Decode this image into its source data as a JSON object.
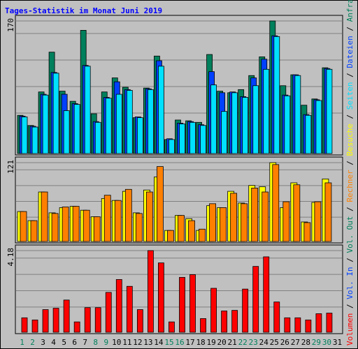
{
  "chart_data": {
    "type": "bar",
    "title": "Tages-Statistik im Monat Juni 2019",
    "title_color": "#0000ff",
    "categories": [
      "1",
      "2",
      "3",
      "4",
      "5",
      "6",
      "7",
      "8",
      "9",
      "10",
      "11",
      "12",
      "13",
      "14",
      "15",
      "16",
      "17",
      "18",
      "19",
      "20",
      "21",
      "22",
      "23",
      "24",
      "25",
      "26",
      "27",
      "28",
      "29",
      "30",
      "31"
    ],
    "category_colors": [
      "#00805c",
      "#00805c",
      "#000000",
      "#000000",
      "#000000",
      "#000000",
      "#000000",
      "#00805c",
      "#00805c",
      "#000000",
      "#000000",
      "#000000",
      "#000000",
      "#000000",
      "#00805c",
      "#00805c",
      "#000000",
      "#000000",
      "#000000",
      "#000000",
      "#000000",
      "#00805c",
      "#00805c",
      "#000000",
      "#000000",
      "#000000",
      "#000000",
      "#000000",
      "#00805c",
      "#00805c",
      "#000000"
    ],
    "panels": [
      {
        "ylim": [
          0,
          170
        ],
        "yticks": [
          170
        ],
        "series": [
          {
            "name": "Anfragen",
            "color": "#00805c",
            "values": [
              49,
              36,
              79,
              130,
              80,
              67,
              158,
              51,
              79,
              97,
              85,
              46,
              84,
              125,
              18,
              43,
              42,
              40,
              127,
              80,
              78,
              82,
              100,
              124,
              170,
              87,
              101,
              62,
              70,
              110,
              null
            ]
          },
          {
            "name": "Dateien",
            "color": "#0040ff",
            "values": [
              48,
              35,
              76,
              104,
              76,
              64,
              113,
              41,
              72,
              92,
              82,
              47,
              83,
              119,
              19,
              39,
              41,
              37,
              105,
              78,
              79,
              73,
              97,
              121,
              151,
              75,
              101,
              50,
              69,
              109,
              null
            ]
          },
          {
            "name": "Seiten",
            "color": "#00e0ff",
            "values": [
              47,
              34,
              75,
              103,
              55,
              63,
              112,
              40,
              71,
              76,
              81,
              46,
              82,
              112,
              18,
              38,
              40,
              36,
              88,
              54,
              78,
              72,
              87,
              108,
              150,
              74,
              100,
              49,
              68,
              108,
              null
            ]
          }
        ]
      },
      {
        "ylim": [
          0,
          121
        ],
        "yticks": [
          121
        ],
        "series": [
          {
            "name": "Besuche",
            "color": "#ffff00",
            "values": [
              46,
              32,
              76,
              44,
              52,
              54,
              48,
              38,
              66,
              63,
              77,
              44,
              79,
              99,
              17,
              40,
              35,
              17,
              55,
              52,
              77,
              59,
              86,
              84,
              121,
              52,
              90,
              30,
              60,
              96,
              null
            ]
          },
          {
            "name": "Rechner",
            "color": "#ff8000",
            "values": [
              46,
              32,
              76,
              43,
              53,
              54,
              48,
              38,
              71,
              63,
              80,
              43,
              76,
              115,
              17,
              40,
              32,
              19,
              58,
              52,
              74,
              58,
              82,
              76,
              118,
              61,
              87,
              29,
              61,
              90,
              null
            ]
          }
        ]
      },
      {
        "ylim": [
          0,
          4.18
        ],
        "yticks": [
          4.18
        ],
        "series": [
          {
            "name": "Vol. Out",
            "color": "#00805c",
            "values": [
              null,
              null,
              null,
              null,
              null,
              null,
              null,
              null,
              null,
              null,
              null,
              null,
              null,
              null,
              null,
              null,
              null,
              null,
              null,
              null,
              null,
              null,
              null,
              null,
              null,
              null,
              null,
              null,
              null,
              null,
              null
            ]
          },
          {
            "name": "Vol. In",
            "color": "#0040ff",
            "values": [
              null,
              null,
              null,
              null,
              null,
              null,
              null,
              null,
              null,
              null,
              null,
              null,
              null,
              null,
              null,
              null,
              null,
              null,
              null,
              null,
              null,
              null,
              null,
              null,
              null,
              null,
              null,
              null,
              null,
              null,
              null
            ]
          },
          {
            "name": "Volumen",
            "color": "#ff0000",
            "values": [
              0.74,
              0.63,
              1.16,
              1.23,
              1.65,
              0.53,
              1.26,
              1.26,
              2.04,
              2.7,
              2.35,
              1.16,
              4.18,
              3.55,
              0.53,
              2.81,
              2.95,
              0.7,
              2.25,
              1.09,
              1.12,
              2.21,
              3.37,
              3.86,
              1.55,
              0.74,
              0.74,
              0.63,
              0.95,
              0.98,
              null
            ]
          }
        ]
      }
    ]
  }
}
